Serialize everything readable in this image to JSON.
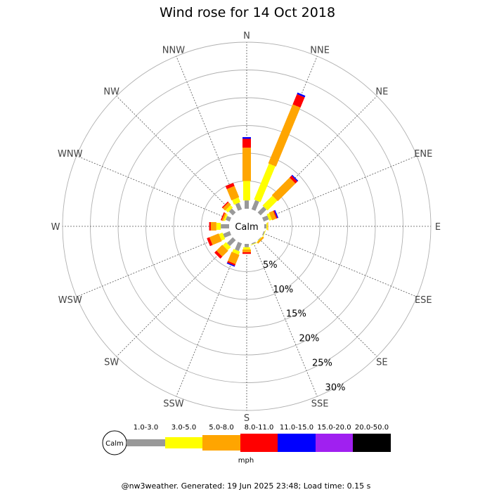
{
  "chart_data": {
    "type": "wind-rose",
    "title": "Wind rose for 14 Oct 2018",
    "directions": [
      "N",
      "NNE",
      "NE",
      "ENE",
      "E",
      "ESE",
      "SE",
      "SSE",
      "S",
      "SSW",
      "SW",
      "WSW",
      "W",
      "WNW",
      "NW",
      "NNW"
    ],
    "radial_ticks": [
      "5%",
      "10%",
      "15%",
      "20%",
      "25%",
      "30%"
    ],
    "radial_max": 30,
    "calm_label": "Calm",
    "unit": "mph",
    "speed_bins": [
      {
        "label": "1.0-3.0",
        "color": "#999999"
      },
      {
        "label": "3.0-5.0",
        "color": "#ffff00"
      },
      {
        "label": "5.0-8.0",
        "color": "#ffa500"
      },
      {
        "label": "8.0-11.0",
        "color": "#ff0000"
      },
      {
        "label": "11.0-15.0",
        "color": "#0000ff"
      },
      {
        "label": "15.0-20.0",
        "color": "#a020f0"
      },
      {
        "label": "20.0-50.0",
        "color": "#000000"
      }
    ],
    "series": [
      {
        "dir": "N",
        "values": [
          1.5,
          3.5,
          6.0,
          1.6,
          0.3,
          0,
          0
        ]
      },
      {
        "dir": "NNE",
        "values": [
          1.8,
          7.0,
          11.5,
          2.0,
          0.3,
          0,
          0
        ]
      },
      {
        "dir": "NE",
        "values": [
          1.5,
          2.5,
          4.5,
          0.5,
          0.2,
          0,
          0
        ]
      },
      {
        "dir": "ENE",
        "values": [
          1.0,
          0.5,
          0.8,
          0.2,
          0.2,
          0,
          0
        ]
      },
      {
        "dir": "E",
        "values": [
          0.4,
          0.2,
          0.1,
          0,
          0,
          0,
          0
        ]
      },
      {
        "dir": "ESE",
        "values": [
          0.2,
          0.1,
          0,
          0,
          0,
          0,
          0
        ]
      },
      {
        "dir": "SE",
        "values": [
          0.1,
          0.1,
          0.3,
          0,
          0,
          0,
          0
        ]
      },
      {
        "dir": "SSE",
        "values": [
          0.2,
          0.1,
          0,
          0,
          0,
          0,
          0
        ]
      },
      {
        "dir": "S",
        "values": [
          0.6,
          0.4,
          0.5,
          0.3,
          0,
          0,
          0
        ]
      },
      {
        "dir": "SSW",
        "values": [
          1.5,
          0.6,
          1.8,
          0.3,
          0.2,
          0,
          0
        ]
      },
      {
        "dir": "SW",
        "values": [
          1.5,
          0.8,
          1.5,
          0.5,
          0,
          0,
          0
        ]
      },
      {
        "dir": "WSW",
        "values": [
          1.3,
          0.7,
          1.8,
          0.5,
          0,
          0,
          0
        ]
      },
      {
        "dir": "W",
        "values": [
          1.5,
          0.8,
          1.0,
          0.3,
          0,
          0,
          0
        ]
      },
      {
        "dir": "WNW",
        "values": [
          0.8,
          0.3,
          0.3,
          0.2,
          0,
          0,
          0
        ]
      },
      {
        "dir": "NW",
        "values": [
          1.0,
          0.6,
          0.6,
          0.2,
          0,
          0,
          0
        ]
      },
      {
        "dir": "NNW",
        "values": [
          1.3,
          0.9,
          2.2,
          0.6,
          0,
          0,
          0
        ]
      }
    ]
  },
  "footer": "@nw3weather. Generated: 19 Jun 2025 23:48; Load time: 0.15 s"
}
